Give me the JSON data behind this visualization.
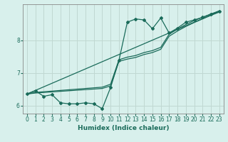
{
  "xlabel": "Humidex (Indice chaleur)",
  "bg_color": "#d8f0ec",
  "line_color": "#1a6b5a",
  "grid_color": "#c0d8d2",
  "xlim": [
    -0.5,
    23.5
  ],
  "ylim": [
    5.75,
    9.1
  ],
  "xticks": [
    0,
    1,
    2,
    3,
    4,
    5,
    6,
    7,
    8,
    9,
    10,
    11,
    12,
    13,
    14,
    15,
    16,
    17,
    18,
    19,
    20,
    21,
    22,
    23
  ],
  "yticks": [
    6,
    7,
    8
  ],
  "main_line_x": [
    0,
    1,
    2,
    3,
    4,
    5,
    6,
    7,
    8,
    9,
    10,
    11,
    12,
    13,
    14,
    15,
    16,
    17,
    18,
    19,
    20,
    21,
    22,
    23
  ],
  "main_line_y": [
    6.35,
    6.45,
    6.28,
    6.33,
    6.08,
    6.05,
    6.05,
    6.08,
    6.05,
    5.9,
    6.55,
    7.38,
    8.55,
    8.65,
    8.62,
    8.35,
    8.68,
    8.22,
    8.37,
    8.55,
    8.62,
    8.7,
    8.8,
    8.88
  ],
  "smooth_line1_x": [
    0,
    1,
    9,
    10,
    11,
    12,
    13,
    14,
    15,
    16,
    17,
    18,
    19,
    20,
    21,
    22,
    23
  ],
  "smooth_line1_y": [
    6.35,
    6.38,
    6.52,
    6.6,
    7.35,
    7.42,
    7.47,
    7.56,
    7.62,
    7.72,
    8.12,
    8.28,
    8.42,
    8.54,
    8.65,
    8.76,
    8.86
  ],
  "smooth_line2_x": [
    0,
    1,
    9,
    10,
    11,
    12,
    13,
    14,
    15,
    16,
    17,
    18,
    19,
    20,
    21,
    22,
    23
  ],
  "smooth_line2_y": [
    6.35,
    6.4,
    6.56,
    6.65,
    7.4,
    7.48,
    7.53,
    7.62,
    7.68,
    7.78,
    8.18,
    8.34,
    8.48,
    8.6,
    8.7,
    8.8,
    8.9
  ],
  "diag_line_x": [
    0,
    23
  ],
  "diag_line_y": [
    6.35,
    8.88
  ]
}
